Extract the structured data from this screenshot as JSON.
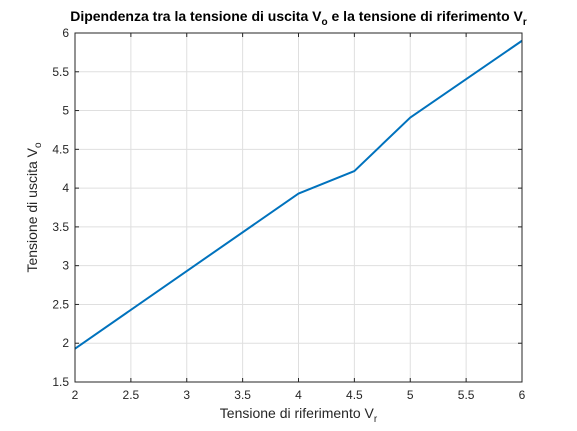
{
  "chart_data": {
    "type": "line",
    "title": {
      "text1": "Dipendenza tra la tensione di uscita V",
      "sub1": "o",
      "text2": " e la tensione di riferimento V",
      "sub2": "r"
    },
    "xlabel": {
      "text": "Tensione di riferimento V",
      "sub": "r"
    },
    "ylabel": {
      "text": "Tensione di uscita V",
      "sub": "o"
    },
    "xlim": [
      2,
      6
    ],
    "ylim": [
      1.5,
      6
    ],
    "xticks": [
      "2",
      "2.5",
      "3",
      "3.5",
      "4",
      "4.5",
      "5",
      "5.5",
      "6"
    ],
    "yticks": [
      "1.5",
      "2",
      "2.5",
      "3",
      "3.5",
      "4",
      "4.5",
      "5",
      "5.5",
      "6"
    ],
    "grid": true,
    "series": [
      {
        "x": [
          2,
          4,
          4.5,
          5,
          6
        ],
        "y": [
          1.93,
          3.93,
          4.22,
          4.91,
          5.9
        ],
        "color": "#0072BD"
      }
    ]
  }
}
